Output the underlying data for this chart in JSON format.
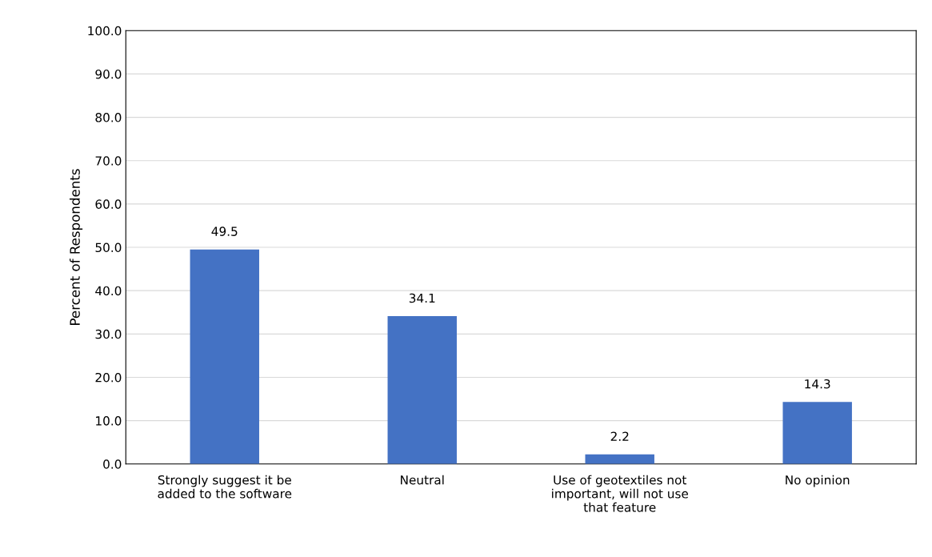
{
  "chart_data": {
    "type": "bar",
    "ylabel": "Percent of Respondents",
    "categories": [
      "Strongly suggest it be\nadded to the software",
      "Neutral",
      "Use of geotextiles not\nimportant, will not use\nthat feature",
      "No opinion"
    ],
    "values": [
      49.5,
      34.1,
      2.2,
      14.3
    ],
    "color": "#4472c4",
    "ylim": [
      0,
      100
    ],
    "yticks": [
      {
        "value": 0,
        "label": "0.0"
      },
      {
        "value": 10,
        "label": "10.0"
      },
      {
        "value": 20,
        "label": "20.0"
      },
      {
        "value": 30,
        "label": "30.0"
      },
      {
        "value": 40,
        "label": "40.0"
      },
      {
        "value": 50,
        "label": "50.0"
      },
      {
        "value": 60,
        "label": "60.0"
      },
      {
        "value": 70,
        "label": "70.0"
      },
      {
        "value": 80,
        "label": "80.0"
      },
      {
        "value": 90,
        "label": "90.0"
      },
      {
        "value": 100,
        "label": "100.0"
      }
    ],
    "grid": "y",
    "data_labels": true
  }
}
